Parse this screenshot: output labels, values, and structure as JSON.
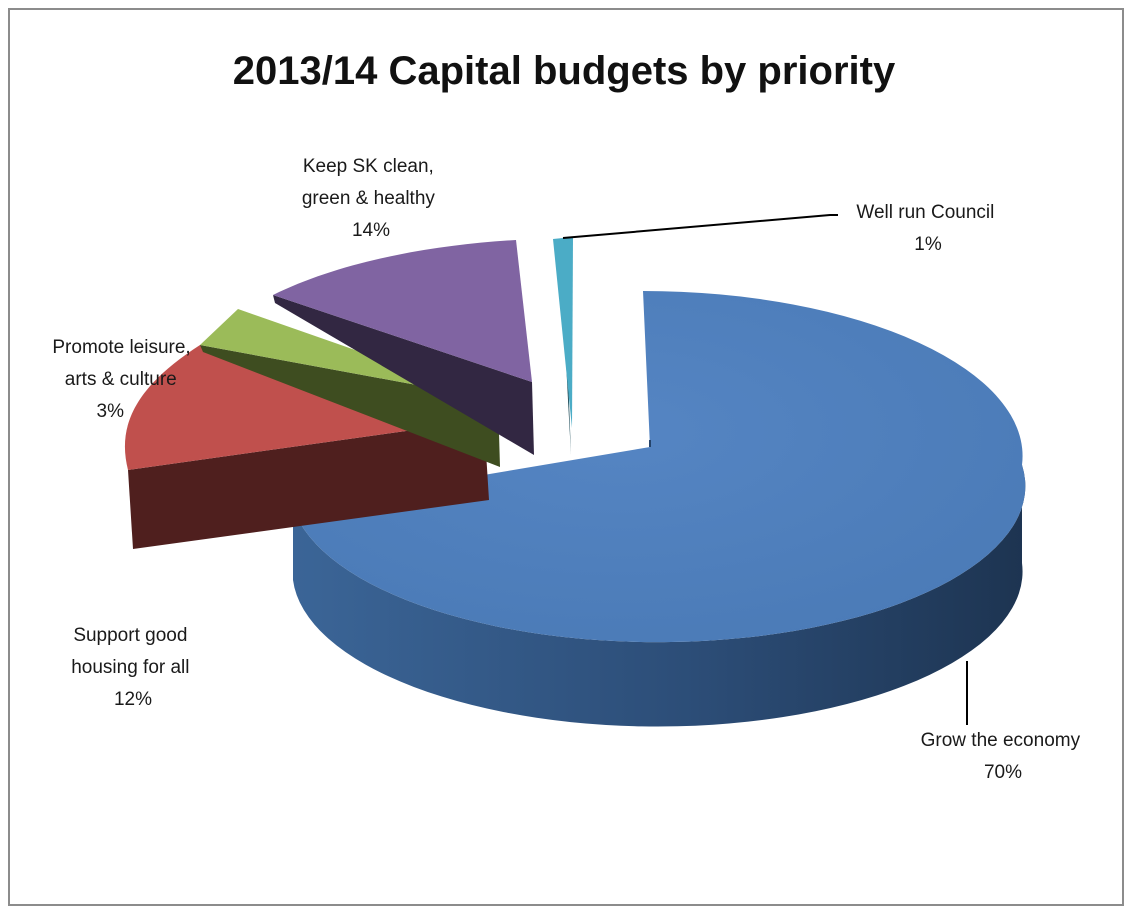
{
  "chart_data": {
    "type": "pie",
    "title": "2013/14 Capital budgets by priority",
    "legend": "none",
    "three_d": true,
    "exploded": true,
    "slices": [
      {
        "name": "Grow the economy",
        "value": 70,
        "label": "70%",
        "color": "#4f81bd"
      },
      {
        "name": "Support good housing for all",
        "value": 12,
        "label": "12%",
        "color": "#c0504d"
      },
      {
        "name": "Promote leisure, arts & culture",
        "value": 3,
        "label": "3%",
        "color": "#9bbb59"
      },
      {
        "name": "Keep SK clean, green & healthy",
        "value": 14,
        "label": "14%",
        "color": "#8064a2"
      },
      {
        "name": "Well run Council",
        "value": 1,
        "label": "1%",
        "color": "#4bacc6"
      }
    ]
  },
  "label_lines": {
    "grow": [
      "Grow the economy",
      "70%"
    ],
    "housing": [
      "Support good",
      "housing for all",
      "12%"
    ],
    "leisure": [
      "Promote leisure,",
      "arts & culture",
      "3%"
    ],
    "green": [
      "Keep SK clean,",
      "green & healthy",
      "14%"
    ],
    "council": [
      "Well run Council",
      "1%"
    ]
  }
}
